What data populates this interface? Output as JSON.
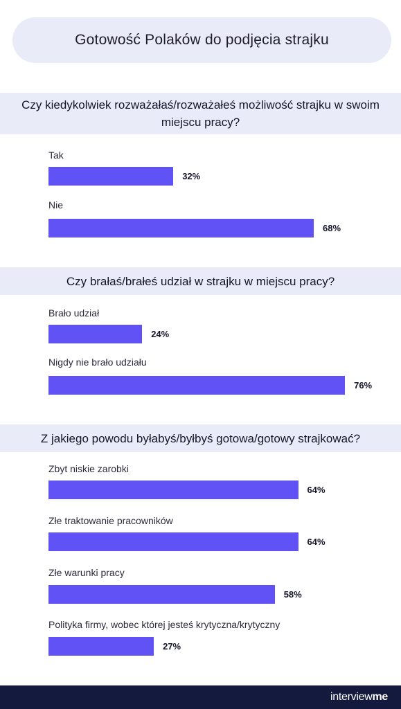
{
  "title": "Gotowość Polaków do podjęcia strajku",
  "chart_data": {
    "type": "bar",
    "orientation": "horizontal",
    "xlim": [
      0,
      100
    ],
    "unit": "%",
    "groups": [
      {
        "question": "Czy kiedykolwiek rozważałaś/rozważałeś możliwość strajku w swoim miejscu pracy?",
        "categories": [
          "Tak",
          "Nie"
        ],
        "values": [
          32,
          68
        ],
        "labels": [
          "32%",
          "68%"
        ]
      },
      {
        "question": "Czy brałaś/brałeś udział w strajku w miejscu pracy?",
        "categories": [
          "Brało udział",
          "Nigdy nie brało udziału"
        ],
        "values": [
          24,
          76
        ],
        "labels": [
          "24%",
          "76%"
        ]
      },
      {
        "question": "Z jakiego powodu byłabyś/byłbyś gotowa/gotowy strajkować?",
        "categories": [
          "Zbyt niskie zarobki",
          "Złe traktowanie pracowników",
          "Złe warunki pracy",
          "Polityka firmy, wobec której jesteś krytyczna/krytyczny"
        ],
        "values": [
          64,
          64,
          58,
          27
        ],
        "labels": [
          "64%",
          "64%",
          "58%",
          "27%"
        ]
      }
    ]
  },
  "colors": {
    "bar": "#6052f5",
    "band": "#e9ecf8",
    "footer": "#141a3d"
  },
  "footer": {
    "logo_main": "interview",
    "logo_accent": "me"
  }
}
